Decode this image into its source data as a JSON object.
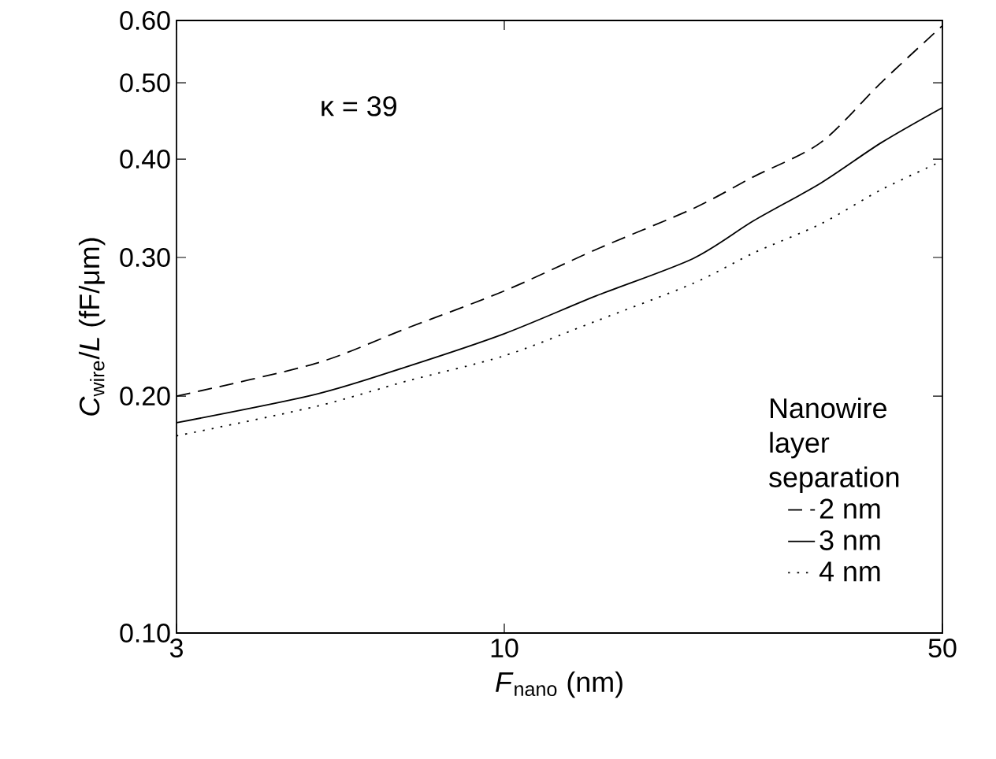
{
  "chart_data": {
    "type": "line",
    "xlabel": "*F*$_{nano}$ (nm)",
    "ylabel": "*C*$_{wire}$/*L*  (fF/μm)",
    "log": "xy",
    "legend": "bottom right",
    "legend_title": "Nanowire layer separation",
    "annotations": [
      "κ = 39"
    ],
    "x": [
      3,
      5,
      7,
      10,
      14,
      20,
      25,
      32,
      40,
      50
    ],
    "xlim": [
      3,
      50
    ],
    "ylim": [
      0.1,
      0.6
    ],
    "xticks": [
      3,
      10,
      50
    ],
    "yticks": [
      {
        "value": 0.1,
        "label": "0.10"
      },
      {
        "value": 0.2,
        "label": "0.20"
      },
      {
        "value": 0.3,
        "label": "0.30"
      },
      {
        "value": 0.4,
        "label": "0.40"
      },
      {
        "value": 0.5,
        "label": "0.50"
      },
      {
        "value": 0.6,
        "label": "0.60"
      }
    ],
    "series": [
      {
        "name": "2 nm",
        "color": "#000000",
        "line_style": "dashed",
        "values": [
          0.2,
          0.22,
          0.244,
          0.272,
          0.307,
          0.346,
          0.38,
          0.42,
          0.501,
          0.591
        ]
      },
      {
        "name": "3 nm",
        "color": "#000000",
        "line_style": "solid",
        "values": [
          0.185,
          0.201,
          0.218,
          0.24,
          0.268,
          0.299,
          0.334,
          0.373,
          0.42,
          0.465
        ]
      },
      {
        "name": "4 nm",
        "color": "#000000",
        "line_style": "dotted",
        "values": [
          0.178,
          0.194,
          0.209,
          0.225,
          0.249,
          0.278,
          0.304,
          0.331,
          0.366,
          0.398
        ]
      }
    ]
  }
}
